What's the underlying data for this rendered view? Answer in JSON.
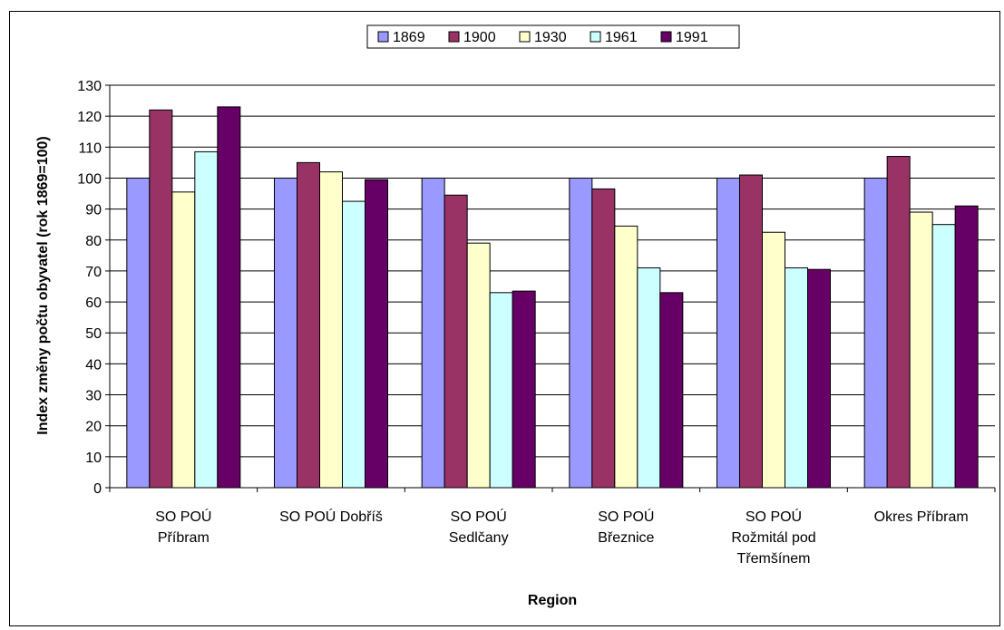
{
  "chart_data": {
    "type": "bar",
    "title": "",
    "xlabel": "Region",
    "ylabel": "Index změny počtu obyvatel (rok 1869=100)",
    "ylim": [
      0,
      130
    ],
    "yticks": [
      0,
      10,
      20,
      30,
      40,
      50,
      60,
      70,
      80,
      90,
      100,
      110,
      120,
      130
    ],
    "grid": true,
    "legend_position": "top",
    "categories": [
      [
        "SO POÚ",
        "Příbram"
      ],
      [
        "SO POÚ Dobříš"
      ],
      [
        "SO POÚ",
        "Sedlčany"
      ],
      [
        "SO POÚ",
        "Březnice"
      ],
      [
        "SO POÚ",
        "Rožmitál pod",
        "Třemšínem"
      ],
      [
        "Okres Příbram"
      ]
    ],
    "series": [
      {
        "name": "1869",
        "color": "#9999ff",
        "values": [
          100,
          100,
          100,
          100,
          100,
          100
        ]
      },
      {
        "name": "1900",
        "color": "#993366",
        "values": [
          122,
          105,
          94.5,
          96.5,
          101,
          107
        ]
      },
      {
        "name": "1930",
        "color": "#ffffcc",
        "values": [
          95.5,
          102,
          79,
          84.5,
          82.5,
          89
        ]
      },
      {
        "name": "1961",
        "color": "#ccffff",
        "values": [
          108.5,
          92.5,
          63,
          71,
          71,
          85
        ]
      },
      {
        "name": "1991",
        "color": "#660066",
        "values": [
          123,
          99.5,
          63.5,
          63,
          70.5,
          91
        ]
      }
    ]
  }
}
